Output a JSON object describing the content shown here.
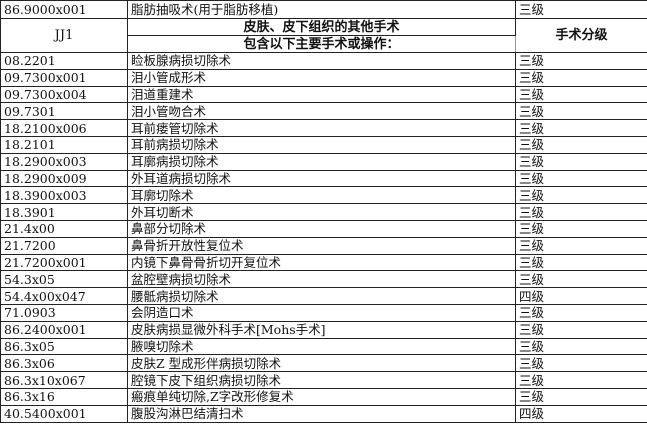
{
  "top_row": {
    "code": "86.9000x001",
    "name": "脂肪抽吸术(用于脂肪移植)",
    "grade": "三级"
  },
  "header": {
    "group_code": "JJ1",
    "group_title": "皮肤、皮下组织的其他手术",
    "group_subtitle": "包含以下主要手术或操作：",
    "grade_header": "手术分级"
  },
  "rows": [
    {
      "code": "08.2201",
      "name": "睑板腺病损切除术",
      "grade": "三级"
    },
    {
      "code": "09.7300x001",
      "name": "泪小管成形术",
      "grade": "三级"
    },
    {
      "code": "09.7300x004",
      "name": "泪道重建术",
      "grade": "三级"
    },
    {
      "code": "09.7301",
      "name": "泪小管吻合术",
      "grade": "三级"
    },
    {
      "code": "18.2100x006",
      "name": "耳前瘘管切除术",
      "grade": "三级"
    },
    {
      "code": "18.2101",
      "name": "耳前病损切除术",
      "grade": "三级"
    },
    {
      "code": "18.2900x003",
      "name": "耳廓病损切除术",
      "grade": "三级"
    },
    {
      "code": "18.2900x009",
      "name": "外耳道病损切除术",
      "grade": "三级"
    },
    {
      "code": "18.3900x003",
      "name": "耳廓切除术",
      "grade": "三级"
    },
    {
      "code": "18.3901",
      "name": "外耳切断术",
      "grade": "三级"
    },
    {
      "code": "21.4x00",
      "name": "鼻部分切除术",
      "grade": "三级"
    },
    {
      "code": "21.7200",
      "name": "鼻骨折开放性复位术",
      "grade": "三级"
    },
    {
      "code": "21.7200x001",
      "name": "内镜下鼻骨骨折切开复位术",
      "grade": "三级"
    },
    {
      "code": "54.3x05",
      "name": "盆腔壁病损切除术",
      "grade": "三级"
    },
    {
      "code": "54.4x00x047",
      "name": "腰骶病损切除术",
      "grade": "四级"
    },
    {
      "code": "71.0903",
      "name": "会阴造口术",
      "grade": "三级"
    },
    {
      "code": "86.2400x001",
      "name": "皮肤病损显微外科手术[Mohs手术]",
      "grade": "三级"
    },
    {
      "code": "86.3x05",
      "name": "腋嗅切除术",
      "grade": "三级"
    },
    {
      "code": "86.3x06",
      "name": "皮肤Z 型成形伴病损切除术",
      "grade": "三级"
    },
    {
      "code": "86.3x10x067",
      "name": "腔镜下皮下组织病损切除术",
      "grade": "三级"
    },
    {
      "code": "86.3x16",
      "name": "瘢痕单纯切除,Z字改形修复术",
      "grade": "三级"
    },
    {
      "code": "40.5400x001",
      "name": "腹股沟淋巴结清扫术",
      "grade": "四级"
    }
  ]
}
